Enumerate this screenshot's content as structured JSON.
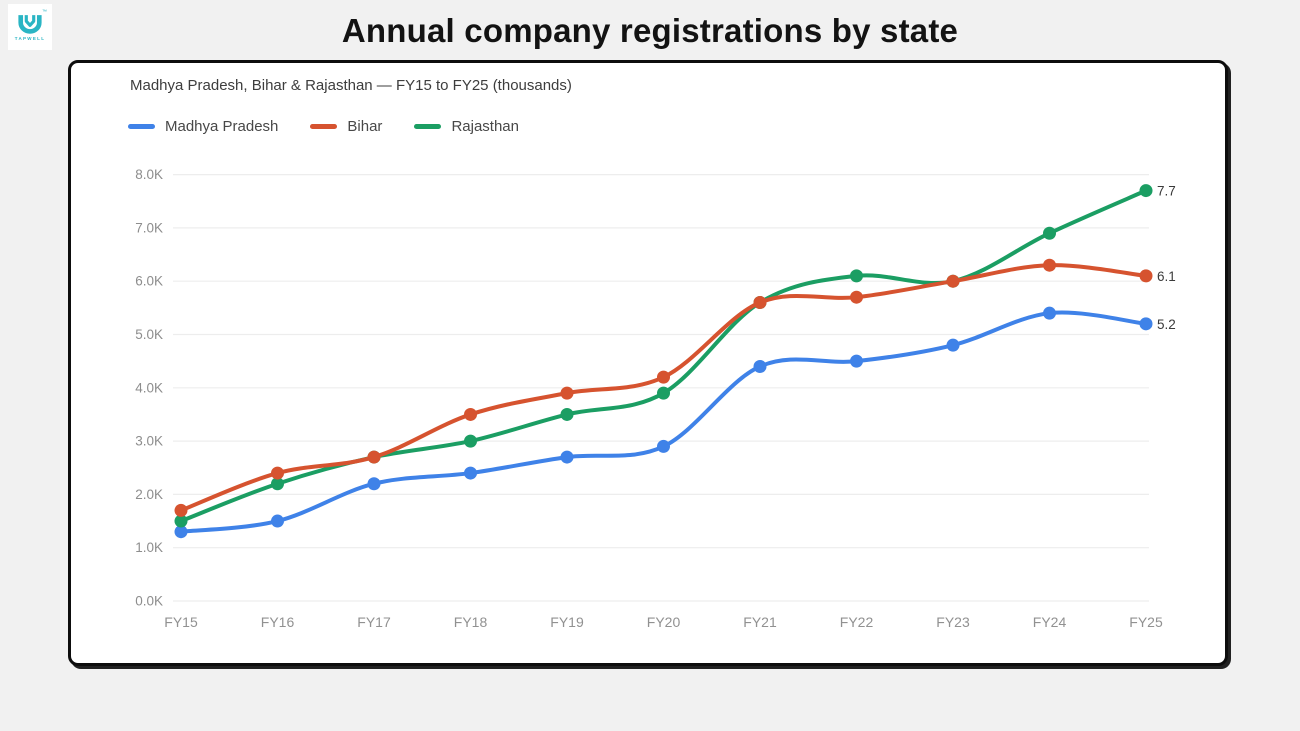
{
  "logo": {
    "brand": "TAPWELL",
    "trademark": "™",
    "color": "#2ab5c4"
  },
  "page_title": "Annual company registrations by state",
  "chart_card": {
    "subtitle": "Madhya Pradesh, Bihar & Rajasthan — FY15 to FY25 (thousands)"
  },
  "chart_data": {
    "type": "line",
    "title": "Annual company registrations by state",
    "subtitle": "Madhya Pradesh, Bihar & Rajasthan — FY15 to FY25 (thousands)",
    "x": [
      "FY15",
      "FY16",
      "FY17",
      "FY18",
      "FY19",
      "FY20",
      "FY21",
      "FY22",
      "FY23",
      "FY24",
      "FY25"
    ],
    "series": [
      {
        "name": "Madhya Pradesh",
        "color": "#3f82e8",
        "values": [
          1.3,
          1.5,
          2.2,
          2.4,
          2.7,
          2.9,
          4.4,
          4.5,
          4.8,
          5.4,
          5.2
        ],
        "end_label": "5.2"
      },
      {
        "name": "Bihar",
        "color": "#d6532f",
        "values": [
          1.7,
          2.4,
          2.7,
          3.5,
          3.9,
          4.2,
          5.6,
          5.7,
          6.0,
          6.3,
          6.1
        ],
        "end_label": "6.1"
      },
      {
        "name": "Rajasthan",
        "color": "#1b9e63",
        "values": [
          1.5,
          2.2,
          2.7,
          3.0,
          3.5,
          3.9,
          5.6,
          6.1,
          6.0,
          6.9,
          7.7
        ],
        "end_label": "7.7"
      }
    ],
    "y_ticks": [
      "0.0K",
      "1.0K",
      "2.0K",
      "3.0K",
      "4.0K",
      "5.0K",
      "6.0K",
      "7.0K",
      "8.0K"
    ],
    "ylim": [
      0,
      8
    ],
    "xlabel": "",
    "ylabel": "",
    "grid": true,
    "legend_position": "top",
    "curve": "smooth",
    "grid_color": "#ededed",
    "axis_text_color": "#919191",
    "annotation_color": "#3a3a3a"
  }
}
